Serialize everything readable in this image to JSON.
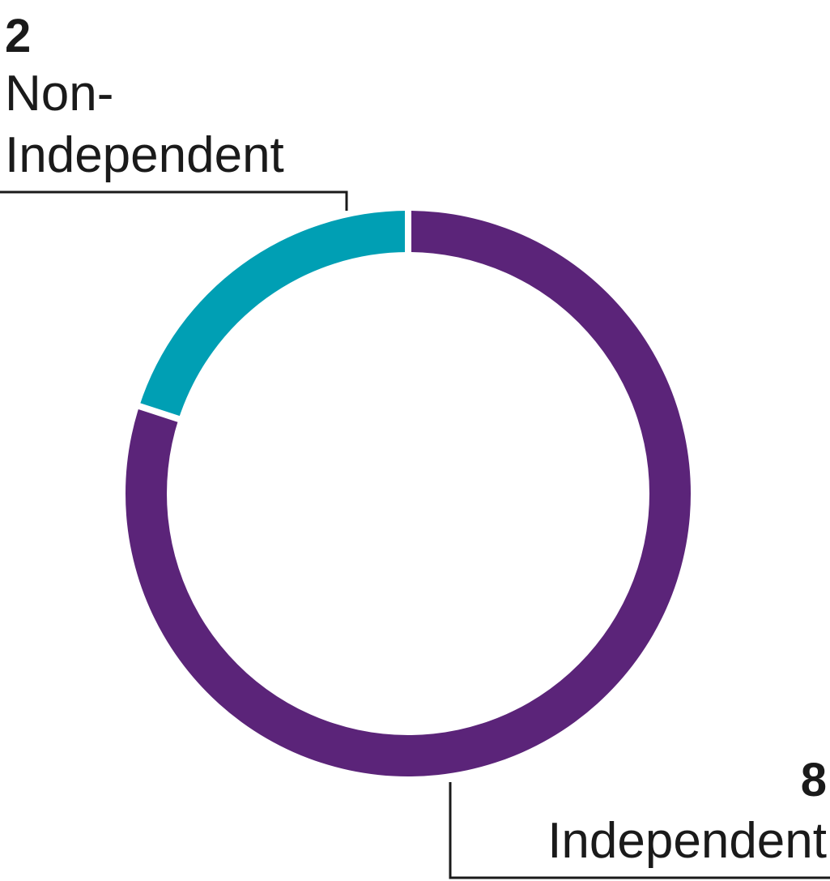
{
  "chart_data": {
    "type": "donut",
    "categories": [
      "Independent",
      "Non-Independent"
    ],
    "values": [
      8,
      2
    ],
    "colors": [
      "#5b2479",
      "#009fb4"
    ]
  }
}
